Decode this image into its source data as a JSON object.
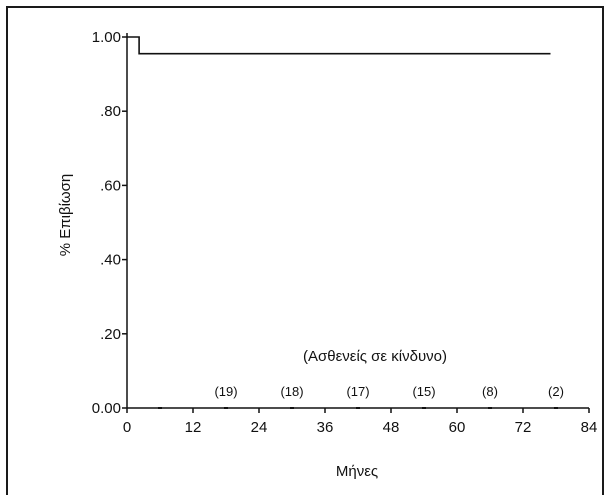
{
  "chart_data": {
    "type": "line",
    "title": "",
    "xlabel": "Μήνες",
    "ylabel": "% Επιβίωση",
    "xlim": [
      0,
      84
    ],
    "ylim": [
      0,
      1
    ],
    "x_ticks": [
      "0",
      "12",
      "24",
      "36",
      "48",
      "60",
      "72",
      "84"
    ],
    "x_tick_values": [
      0,
      12,
      24,
      36,
      48,
      60,
      72,
      84
    ],
    "y_ticks": [
      "0.00",
      ".20",
      ".40",
      ".60",
      ".80",
      "1.00"
    ],
    "y_tick_values": [
      0,
      0.2,
      0.4,
      0.6,
      0.8,
      1.0
    ],
    "grid": false,
    "series": [
      {
        "step": true,
        "x": [
          0,
          2.2,
          2.2,
          77
        ],
        "y": [
          1.0,
          1.0,
          0.955,
          0.955
        ]
      }
    ],
    "at_risk": {
      "title": "(Ασθενείς σε κίνδυνο)",
      "labels": [
        "(19)",
        "(18)",
        "(17)",
        "(15)",
        "(8)",
        "(2)"
      ],
      "x": [
        18,
        30,
        42,
        54,
        66,
        78
      ]
    },
    "colors": {
      "line": "#111111",
      "axis": "#111111"
    }
  }
}
